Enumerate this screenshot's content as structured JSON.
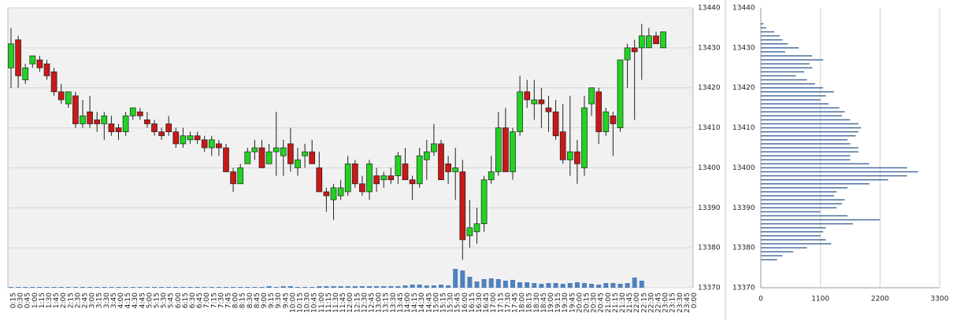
{
  "chart_data": [
    {
      "type": "candlestick",
      "categories": [
        "0:15",
        "0:30",
        "0:45",
        "1:00",
        "1:15",
        "1:30",
        "1:45",
        "2:00",
        "2:15",
        "2:30",
        "2:45",
        "3:00",
        "3:15",
        "3:30",
        "3:45",
        "4:00",
        "4:15",
        "4:30",
        "4:45",
        "5:00",
        "5:15",
        "5:30",
        "5:45",
        "6:00",
        "6:15",
        "6:30",
        "6:45",
        "7:00",
        "7:15",
        "7:30",
        "7:45",
        "8:00",
        "8:15",
        "8:30",
        "8:45",
        "9:00",
        "9:15",
        "9:30",
        "9:45",
        "10:00",
        "10:15",
        "10:30",
        "10:45",
        "11:00",
        "11:15",
        "11:30",
        "11:45",
        "12:00",
        "12:15",
        "12:30",
        "12:45",
        "13:00",
        "13:15",
        "13:30",
        "13:45",
        "14:00",
        "14:15",
        "14:30",
        "14:45",
        "15:00",
        "15:15",
        "15:30",
        "15:45",
        "16:00",
        "16:15",
        "16:30",
        "16:45",
        "17:00",
        "17:15",
        "17:30",
        "17:45",
        "18:00",
        "18:15",
        "18:30",
        "18:45",
        "19:00",
        "19:15",
        "19:30",
        "19:45",
        "20:00",
        "20:15",
        "20:30",
        "20:45",
        "21:00",
        "21:15",
        "21:30",
        "21:45",
        "22:00",
        "22:15",
        "22:30",
        "22:45",
        "23:00",
        "23:15",
        "23:30",
        "23:45",
        "0:00"
      ],
      "open": [
        13425,
        13432,
        13422,
        13426,
        13427,
        13426,
        13424,
        13419,
        13416,
        13418,
        13411,
        13414,
        13412,
        13411,
        13411,
        13410,
        13409,
        13413,
        13414,
        13412,
        13411,
        13409,
        13411,
        13409,
        13406,
        13407,
        13408,
        13407,
        13405,
        13406,
        13405,
        13399,
        13396,
        13401,
        13404,
        13405,
        13401,
        13404,
        13403,
        13406,
        13400,
        13403,
        13404,
        13400,
        13394,
        13392,
        13393,
        13394,
        13401,
        13396,
        13394,
        13398,
        13397,
        13398,
        13398,
        13401,
        13397,
        13396,
        13402,
        13404,
        13406,
        13401,
        13399,
        13399,
        13383,
        13384,
        13386,
        13397,
        13399,
        13410,
        13399,
        13409,
        13419,
        13416,
        13417,
        13415,
        13414,
        13409,
        13402,
        13404,
        13400,
        13416,
        13419,
        13409,
        13413,
        13410,
        13427,
        13430,
        13430,
        13430,
        13433,
        13430,
        null,
        null,
        null,
        null
      ],
      "high": [
        13435,
        13433,
        13426,
        13428,
        13428,
        13427,
        13425,
        13421,
        13419,
        13419,
        13417,
        13418,
        13414,
        13414,
        13413,
        13411,
        13414,
        13415,
        13415,
        13414,
        13412,
        13410,
        13413,
        13410,
        13410,
        13409,
        13409,
        13408,
        13408,
        13407,
        13406,
        13400,
        13401,
        13405,
        13407,
        13407,
        13406,
        13414,
        13407,
        13410,
        13405,
        13406,
        13407,
        13404,
        13395,
        13396,
        13397,
        13403,
        13402,
        13398,
        13402,
        13400,
        13399,
        13400,
        13404,
        13405,
        13398,
        13405,
        13407,
        13411,
        13407,
        13403,
        13405,
        13402,
        13392,
        13390,
        13398,
        13403,
        13414,
        13415,
        13410,
        13423,
        13422,
        13422,
        13420,
        13418,
        13417,
        13416,
        13418,
        13407,
        13418,
        13420,
        13420,
        13415,
        13414,
        13427,
        13431,
        13432,
        13436,
        13435,
        13434,
        13434,
        null,
        null,
        null,
        null
      ],
      "low": [
        13420,
        13420,
        13421,
        13425,
        13424,
        13422,
        13418,
        13416,
        13415,
        13410,
        13410,
        13410,
        13409,
        13407,
        13408,
        13407,
        13408,
        13412,
        13412,
        13410,
        13408,
        13407,
        13408,
        13405,
        13405,
        13406,
        13406,
        13404,
        13403,
        13403,
        13399,
        13394,
        13396,
        13401,
        13402,
        13400,
        13401,
        13398,
        13398,
        13399,
        13398,
        13400,
        13401,
        13394,
        13389,
        13387,
        13392,
        13393,
        13395,
        13393,
        13392,
        13394,
        13395,
        13396,
        13396,
        13397,
        13392,
        13395,
        13397,
        13403,
        13397,
        13396,
        13392,
        13377,
        13380,
        13381,
        13384,
        13396,
        13398,
        13399,
        13397,
        13408,
        13415,
        13412,
        13410,
        13409,
        13407,
        13401,
        13398,
        13396,
        13398,
        13413,
        13406,
        13408,
        13403,
        13409,
        13420,
        13412,
        13422,
        13430,
        13431,
        13430,
        null,
        null,
        null,
        null
      ],
      "close": [
        13431,
        13423,
        13425,
        13428,
        13425,
        13423,
        13419,
        13417,
        13419,
        13411,
        13413,
        13411,
        13411,
        13413,
        13409,
        13409,
        13413,
        13415,
        13413,
        13411,
        13409,
        13408,
        13409,
        13406,
        13408,
        13408,
        13407,
        13405,
        13407,
        13405,
        13399,
        13396,
        13400,
        13404,
        13405,
        13400,
        13404,
        13405,
        13405,
        13401,
        13402,
        13404,
        13401,
        13394,
        13393,
        13395,
        13395,
        13401,
        13396,
        13394,
        13401,
        13396,
        13398,
        13397,
        13403,
        13397,
        13396,
        13403,
        13404,
        13406,
        13397,
        13399,
        13400,
        13382,
        13385,
        13386,
        13397,
        13399,
        13410,
        13399,
        13409,
        13419,
        13417,
        13417,
        13416,
        13414,
        13408,
        13402,
        13404,
        13401,
        13415,
        13420,
        13409,
        13414,
        13411,
        13427,
        13430,
        13429,
        13433,
        13433,
        13431,
        13434,
        null,
        null,
        null,
        null
      ],
      "volume": [
        1,
        1,
        1,
        1,
        1,
        1,
        1,
        1,
        1,
        1,
        1,
        1,
        1,
        1,
        1,
        1,
        1,
        1,
        1,
        1,
        1,
        1,
        1,
        1,
        1,
        1,
        1,
        1,
        1,
        1,
        1,
        1,
        1,
        1,
        1,
        1,
        2,
        1,
        2,
        2,
        1,
        1,
        1,
        2,
        2,
        2,
        2,
        2,
        2,
        2,
        2,
        2,
        2,
        2,
        2,
        3,
        4,
        4,
        3,
        3,
        4,
        3,
        24,
        22,
        14,
        8,
        11,
        12,
        11,
        9,
        10,
        7,
        7,
        6,
        5,
        6,
        6,
        5,
        6,
        7,
        6,
        5,
        4,
        6,
        6,
        5,
        6,
        13,
        9,
        null,
        null,
        null,
        null,
        null,
        null,
        null
      ],
      "up_color": "#22d322",
      "down_color": "#c81818",
      "volume_color": "#4f81bd",
      "ylim": [
        13370,
        13440
      ],
      "yticks": [
        13370,
        13380,
        13390,
        13400,
        13410,
        13420,
        13430,
        13440
      ],
      "grid": true
    },
    {
      "type": "barh",
      "levels": [
        13436,
        13435,
        13434,
        13433,
        13432,
        13431,
        13430,
        13429,
        13428,
        13427,
        13426,
        13425,
        13424,
        13423,
        13422,
        13421,
        13420,
        13419,
        13418,
        13417,
        13416,
        13415,
        13414,
        13413,
        13412,
        13411,
        13410,
        13409,
        13408,
        13407,
        13406,
        13405,
        13404,
        13403,
        13402,
        13401,
        13400,
        13399,
        13398,
        13397,
        13396,
        13395,
        13394,
        13393,
        13392,
        13391,
        13390,
        13389,
        13388,
        13387,
        13386,
        13385,
        13384,
        13383,
        13382,
        13381,
        13380,
        13379,
        13378,
        13377
      ],
      "values": [
        50,
        100,
        250,
        350,
        400,
        500,
        700,
        450,
        950,
        1150,
        900,
        950,
        800,
        650,
        850,
        1000,
        1150,
        1350,
        1200,
        1100,
        1250,
        1450,
        1550,
        1500,
        1650,
        1800,
        1850,
        1800,
        1750,
        1600,
        1650,
        1800,
        1800,
        1650,
        1650,
        2000,
        2700,
        2900,
        2700,
        2350,
        2000,
        1600,
        1400,
        1350,
        1550,
        1500,
        1400,
        1100,
        1600,
        2200,
        1700,
        1200,
        1150,
        1100,
        1200,
        1300,
        850,
        600,
        400,
        300
      ],
      "color": "#4a6f9a",
      "xlim": [
        0,
        3300
      ],
      "xticks": [
        0,
        1100,
        2200,
        3300
      ],
      "ylim": [
        13370,
        13440
      ],
      "yticks": [
        13370,
        13380,
        13390,
        13400,
        13410,
        13420,
        13430,
        13440
      ],
      "grid": true
    }
  ]
}
